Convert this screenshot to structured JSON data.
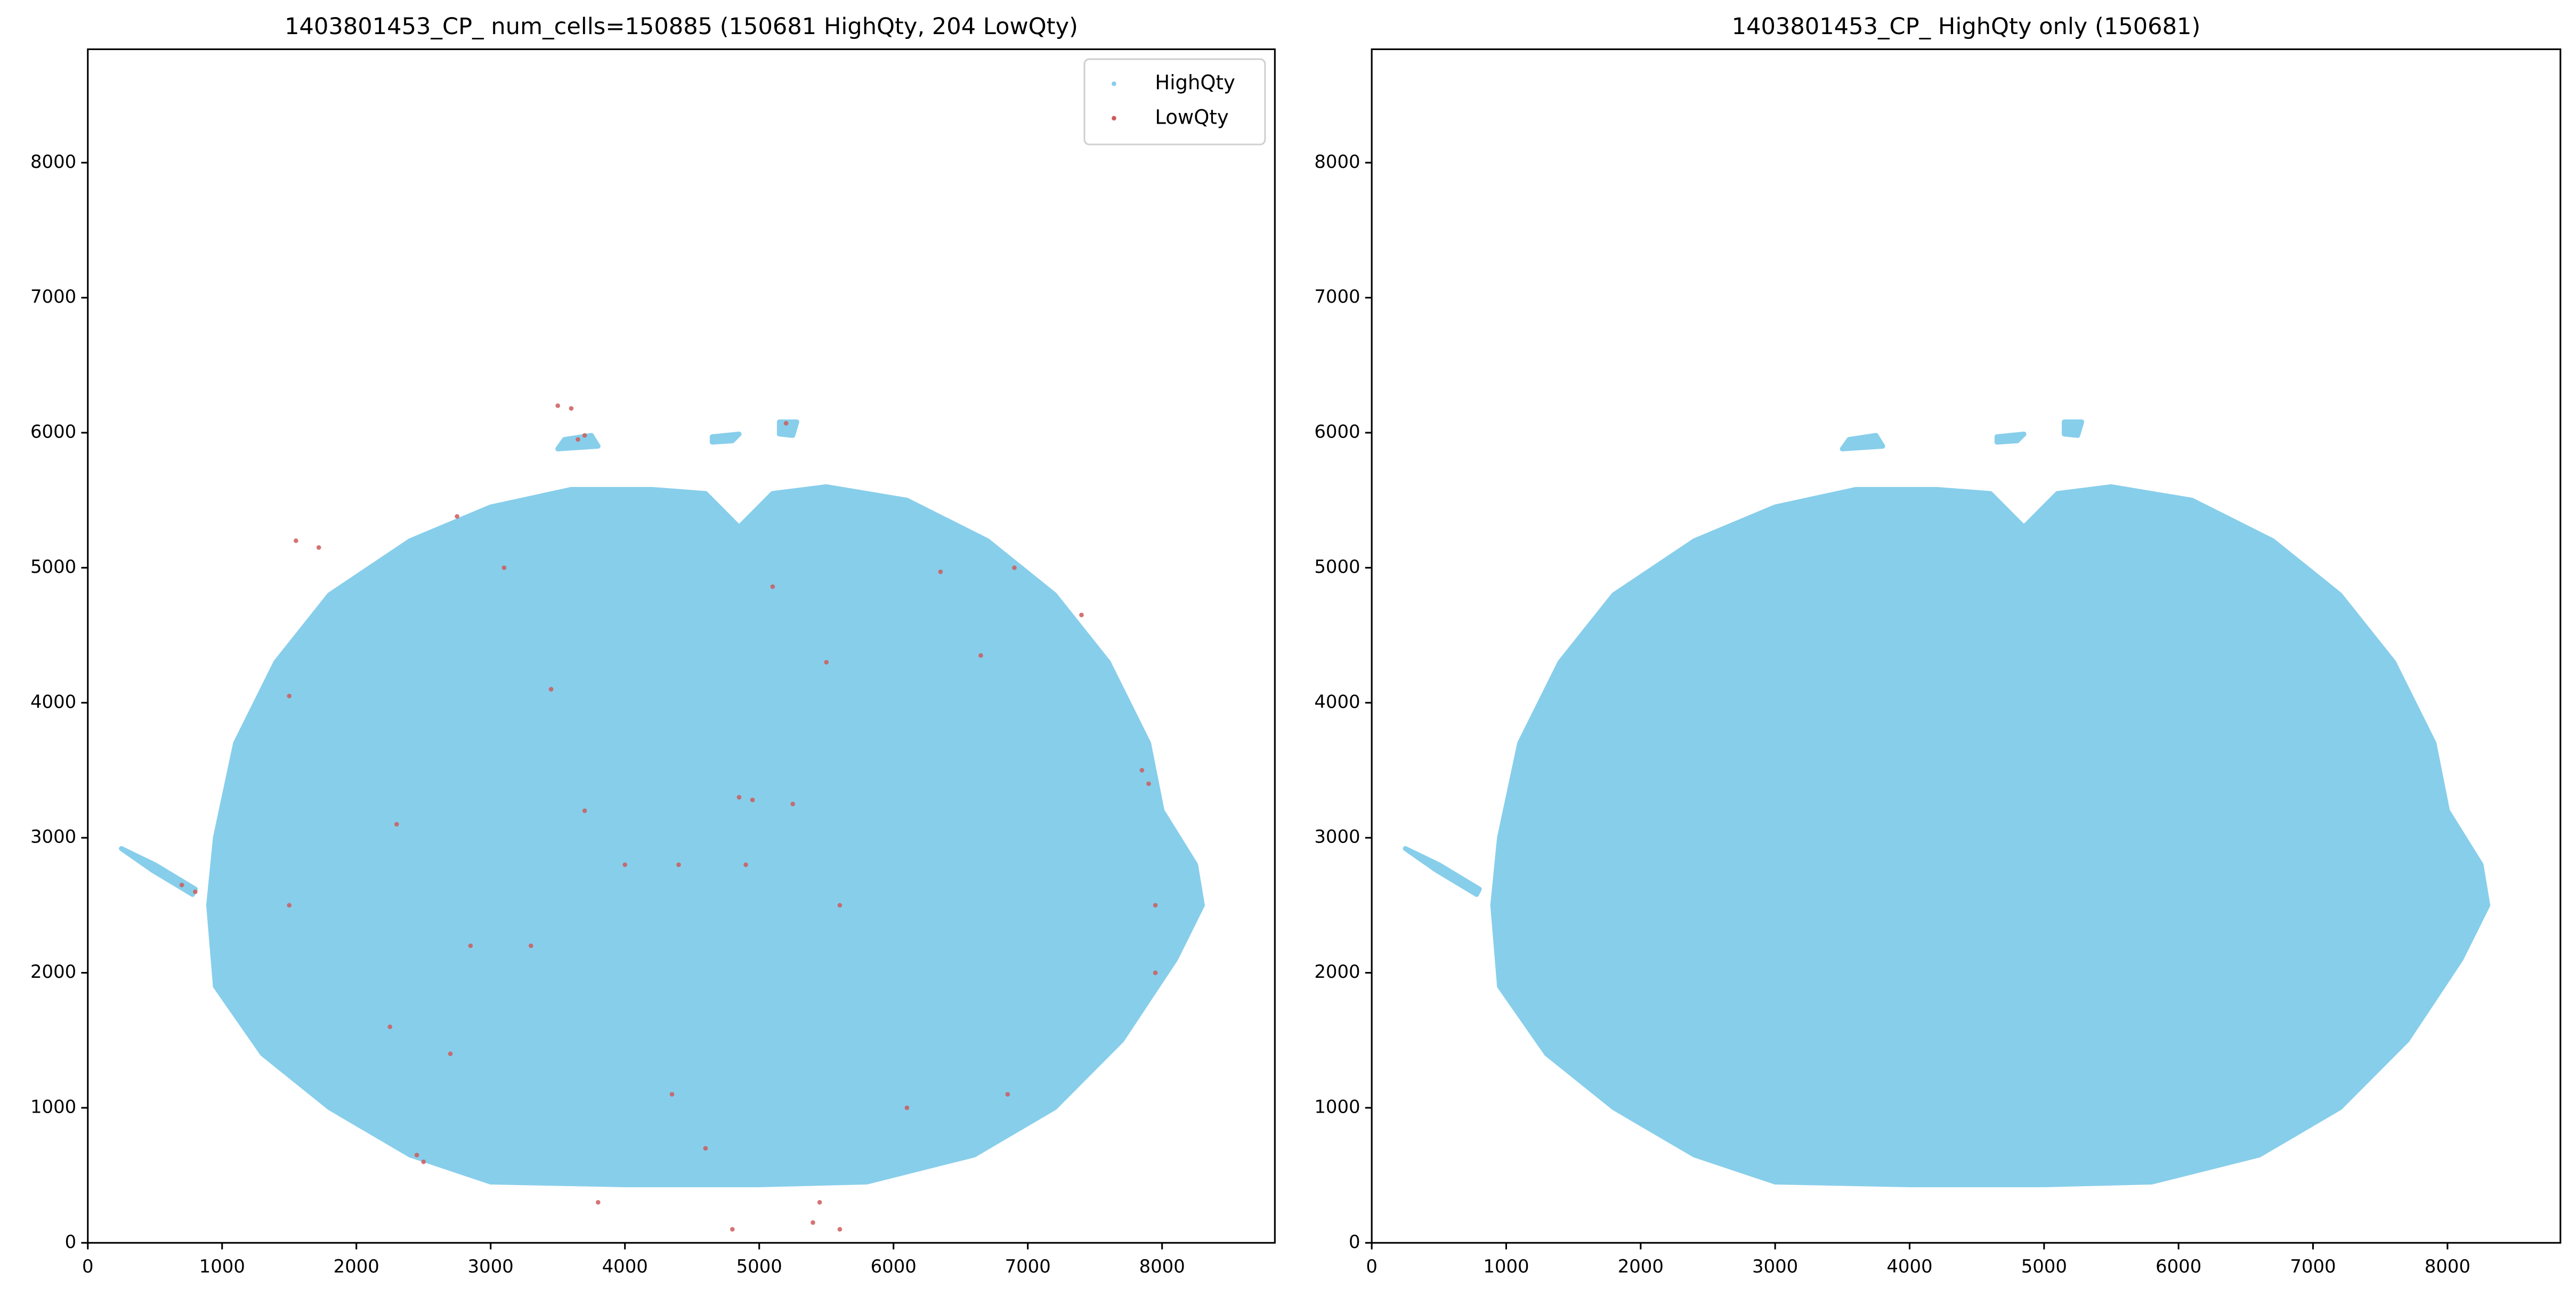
{
  "chart_data": [
    {
      "type": "scatter",
      "title": "1403801453_CP_ num_cells=150885 (150681 HighQty, 204 LowQty)",
      "xlim": [
        0,
        8840
      ],
      "ylim": [
        0,
        8840
      ],
      "xticks": [
        0,
        1000,
        2000,
        3000,
        4000,
        5000,
        6000,
        7000,
        8000
      ],
      "yticks": [
        0,
        1000,
        2000,
        3000,
        4000,
        5000,
        6000,
        7000,
        8000
      ],
      "legend": "upper right",
      "series": [
        {
          "name": "HighQty",
          "color": "#87ceeb",
          "x": [
            3000,
            4000,
            5000,
            5800,
            6600,
            7200,
            7700,
            8100,
            8300,
            8250,
            8000,
            7900,
            7600,
            7200,
            6700,
            6100,
            5500,
            5100,
            4850,
            4600,
            4200,
            3600,
            3000,
            2400,
            1800,
            1400,
            1100,
            950,
            900,
            950,
            1300,
            1800,
            2400,
            null,
            250,
            500,
            800,
            780,
            480,
            null,
            3500,
            3800,
            3750,
            3550,
            null,
            5150,
            5280,
            5250,
            5150,
            null,
            4650,
            4850,
            4800,
            4650
          ],
          "y": [
            450,
            430,
            430,
            450,
            650,
            1000,
            1500,
            2100,
            2500,
            2800,
            3200,
            3700,
            4300,
            4800,
            5200,
            5500,
            5600,
            5550,
            5300,
            5550,
            5580,
            5580,
            5450,
            5200,
            4800,
            4300,
            3700,
            3000,
            2500,
            1900,
            1400,
            1000,
            650,
            null,
            2920,
            2800,
            2620,
            2580,
            2760,
            null,
            5880,
            5900,
            5980,
            5950,
            null,
            6080,
            6080,
            5980,
            5990,
            null,
            5970,
            5990,
            5940,
            5930
          ]
        },
        {
          "name": "LowQty",
          "color": "#cd5c5c",
          "x": [
            1550,
            1720,
            1500,
            2750,
            3100,
            3500,
            3600,
            3650,
            3700,
            5200,
            6350,
            6900,
            7400,
            7850,
            7900,
            7950,
            7950,
            5500,
            5100,
            4850,
            4950,
            5250,
            4400,
            4000,
            3700,
            3300,
            2850,
            2700,
            2250,
            2500,
            2450,
            800,
            700,
            1500,
            4900,
            4350,
            4600,
            3800,
            4800,
            5400,
            5600,
            5450,
            6100,
            6850,
            6650,
            3450,
            5600,
            2300
          ],
          "y": [
            5200,
            5150,
            4050,
            5380,
            5000,
            6200,
            6180,
            5950,
            5980,
            6070,
            4970,
            5000,
            4650,
            3500,
            3400,
            2500,
            2000,
            4300,
            4860,
            3300,
            3280,
            3250,
            2800,
            2800,
            3200,
            2200,
            2200,
            1400,
            1600,
            600,
            650,
            2600,
            2650,
            2500,
            2800,
            1100,
            700,
            300,
            100,
            150,
            100,
            300,
            1000,
            1100,
            4350,
            4100,
            2500,
            3100
          ]
        }
      ]
    },
    {
      "type": "scatter",
      "title": "1403801453_CP_ HighQty only (150681)",
      "xlim": [
        0,
        8840
      ],
      "ylim": [
        0,
        8840
      ],
      "xticks": [
        0,
        1000,
        2000,
        3000,
        4000,
        5000,
        6000,
        7000,
        8000
      ],
      "yticks": [
        0,
        1000,
        2000,
        3000,
        4000,
        5000,
        6000,
        7000,
        8000
      ],
      "series": [
        {
          "color": "#87ceeb",
          "x": [
            3000,
            4000,
            5000,
            5800,
            6600,
            7200,
            7700,
            8100,
            8300,
            8250,
            8000,
            7900,
            7600,
            7200,
            6700,
            6100,
            5500,
            5100,
            4850,
            4600,
            4200,
            3600,
            3000,
            2400,
            1800,
            1400,
            1100,
            950,
            900,
            950,
            1300,
            1800,
            2400,
            null,
            250,
            500,
            800,
            780,
            480,
            null,
            3500,
            3800,
            3750,
            3550,
            null,
            5150,
            5280,
            5250,
            5150,
            null,
            4650,
            4850,
            4800,
            4650
          ],
          "y": [
            450,
            430,
            430,
            450,
            650,
            1000,
            1500,
            2100,
            2500,
            2800,
            3200,
            3700,
            4300,
            4800,
            5200,
            5500,
            5600,
            5550,
            5300,
            5550,
            5580,
            5580,
            5450,
            5200,
            4800,
            4300,
            3700,
            3000,
            2500,
            1900,
            1400,
            1000,
            650,
            null,
            2920,
            2800,
            2620,
            2580,
            2760,
            null,
            5880,
            5900,
            5980,
            5950,
            null,
            6080,
            6080,
            5980,
            5990,
            null,
            5970,
            5990,
            5940,
            5930
          ]
        }
      ]
    }
  ]
}
